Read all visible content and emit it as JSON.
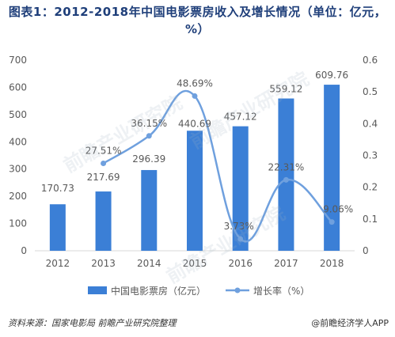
{
  "title": "图表1：2012-2018年中国电影票房收入及增长情况（单位：亿元，%）",
  "footer": {
    "source": "资料来源：国家电影局  前瞻产业研究院整理",
    "credit": "@前瞻经济学人APP"
  },
  "watermark": "前瞻产业研究院",
  "colors": {
    "bar": "#3b7fd6",
    "line": "#6fa0de",
    "axis_text": "#595959",
    "grid": "#d9d9d9"
  },
  "chart_data": {
    "type": "bar",
    "categories": [
      "2012",
      "2013",
      "2014",
      "2015",
      "2016",
      "2017",
      "2018"
    ],
    "series": [
      {
        "name": "中国电影票房（亿元）",
        "type": "bar",
        "axis": "left",
        "values": [
          170.73,
          217.69,
          296.39,
          440.69,
          457.12,
          559.12,
          609.76
        ],
        "labels": [
          "170.73",
          "217.69",
          "296.39",
          "440.69",
          "457.12",
          "559.12",
          "609.76"
        ]
      },
      {
        "name": "增长率（%）",
        "type": "line",
        "axis": "right",
        "values": [
          null,
          0.2751,
          0.3615,
          0.4869,
          0.0373,
          0.2231,
          0.0906
        ],
        "labels": [
          "",
          "27.51%",
          "36.15%",
          "48.69%",
          "3.73%",
          "22.31%",
          "9.06%"
        ]
      }
    ],
    "y_left": {
      "min": 0,
      "max": 700,
      "ticks": [
        0,
        100,
        200,
        300,
        400,
        500,
        600,
        700
      ]
    },
    "y_right": {
      "min": 0,
      "max": 0.6,
      "ticks": [
        "0",
        "0.1",
        "0.2",
        "0.3",
        "0.4",
        "0.5",
        "0.6"
      ]
    },
    "grid": false,
    "legend_position": "bottom"
  }
}
